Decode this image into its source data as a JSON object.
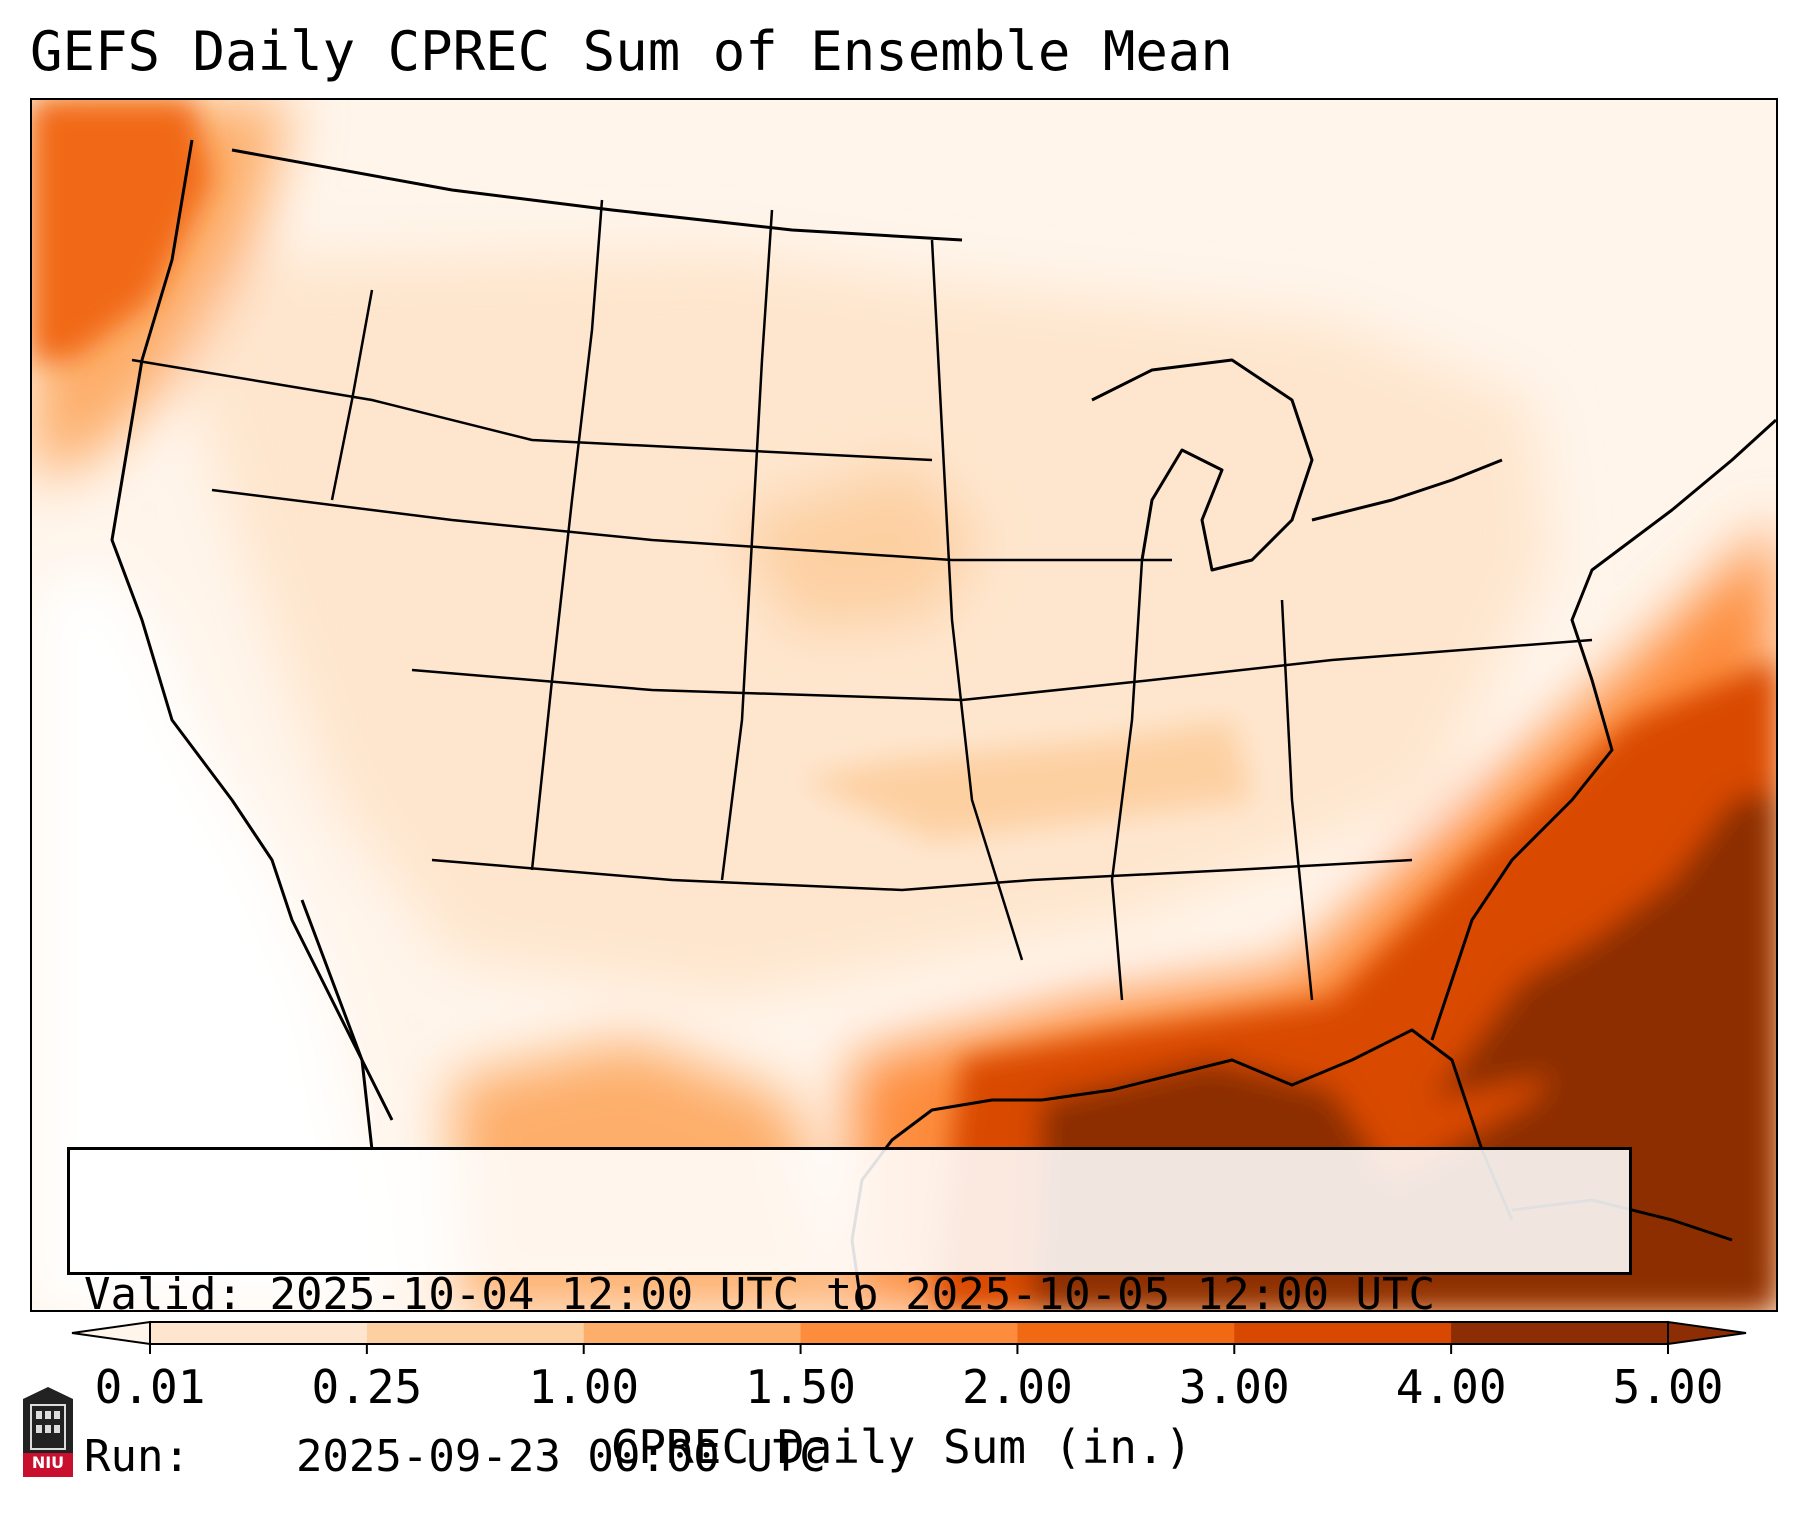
{
  "title": "GEFS Daily CPREC Sum of Ensemble Mean",
  "info": {
    "valid_label": "Valid:",
    "valid_value": "2025-10-04 12:00 UTC to 2025-10-05 12:00 UTC",
    "run_label": "Run:",
    "run_value": "2025-09-23 00:00 UTC"
  },
  "colorbar": {
    "title": "CPREC Daily Sum (in.)",
    "ticks": [
      "0.01",
      "0.25",
      "1.00",
      "1.50",
      "2.00",
      "3.00",
      "4.00",
      "5.00"
    ],
    "colors": [
      "#fff5eb",
      "#fee6ce",
      "#fdd0a2",
      "#fdae6b",
      "#fd8d3c",
      "#f16913",
      "#d94801",
      "#8c2d04"
    ]
  },
  "logo": {
    "text": "NIU",
    "color": "#c8102e"
  }
}
